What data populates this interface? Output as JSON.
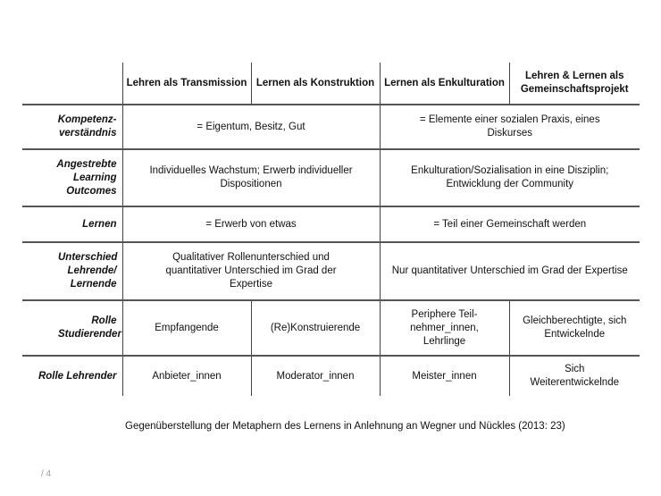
{
  "table": {
    "headers": [
      "",
      "Lehren als Transmission",
      "Lernen als Konstruktion",
      "Lernen als Enkulturation",
      "Lehren & Lernen als Gemeinschaftsprojekt"
    ],
    "rows": [
      {
        "label": "Kompetenz-verständnis",
        "left": "= Eigentum, Besitz, Gut",
        "right": "= Elemente einer sozialen Praxis, eines Diskurses"
      },
      {
        "label": "Angestrebte Learning Outcomes",
        "left": "Individuelles Wachstum; Erwerb individueller Dispositionen",
        "right": "Enkulturation/Sozialisation in eine Disziplin; Entwicklung der Community"
      },
      {
        "label": "Lernen",
        "left": "= Erwerb von etwas",
        "right": "= Teil einer Gemeinschaft werden"
      },
      {
        "label": "Unterschied Lehrende/ Lernende",
        "left": "Qualitativer Rollenunterschied und quantitativer Unterschied im Grad der Expertise",
        "right": "Nur quantitativer Unterschied im Grad der Expertise"
      },
      {
        "label": "Rolle Studierender",
        "cells": [
          "Empfangende",
          "(Re)Konstruierende",
          "Periphere Teil-nehmer_innen, Lehrlinge",
          "Gleichberechtigte, sich Entwickelnde"
        ]
      },
      {
        "label": "Rolle Lehrender",
        "cells": [
          "Anbieter_innen",
          "Moderator_innen",
          "Meister_innen",
          "Sich Weiterentwickelnde"
        ]
      }
    ]
  },
  "caption": "Gegenüberstellung der Metaphern des Lernens in Anlehnung an Wegner und Nückles (2013: 23)",
  "page_number": "/ 4"
}
